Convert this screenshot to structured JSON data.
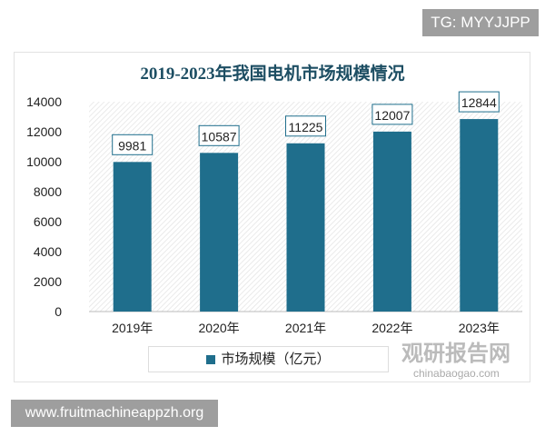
{
  "watermark_top": "TG: MYYJJPP",
  "watermark_bottom": "www.fruitmachineappzh.org",
  "watermark_logo": "观研报告网",
  "watermark_site": "chinabaogao.com",
  "chart_data": {
    "type": "bar",
    "title": "2019-2023年我国电机市场规模情况",
    "categories": [
      "2019年",
      "2020年",
      "2021年",
      "2022年",
      "2023年"
    ],
    "series": [
      {
        "name": "市场规模（亿元）",
        "values": [
          9981,
          10587,
          11225,
          12007,
          12844
        ]
      }
    ],
    "ylim": [
      0,
      14000
    ],
    "yticks": [
      0,
      2000,
      4000,
      6000,
      8000,
      10000,
      12000,
      14000
    ],
    "bar_color": "#1f6e8c",
    "legend": "bottom",
    "grid": false
  }
}
